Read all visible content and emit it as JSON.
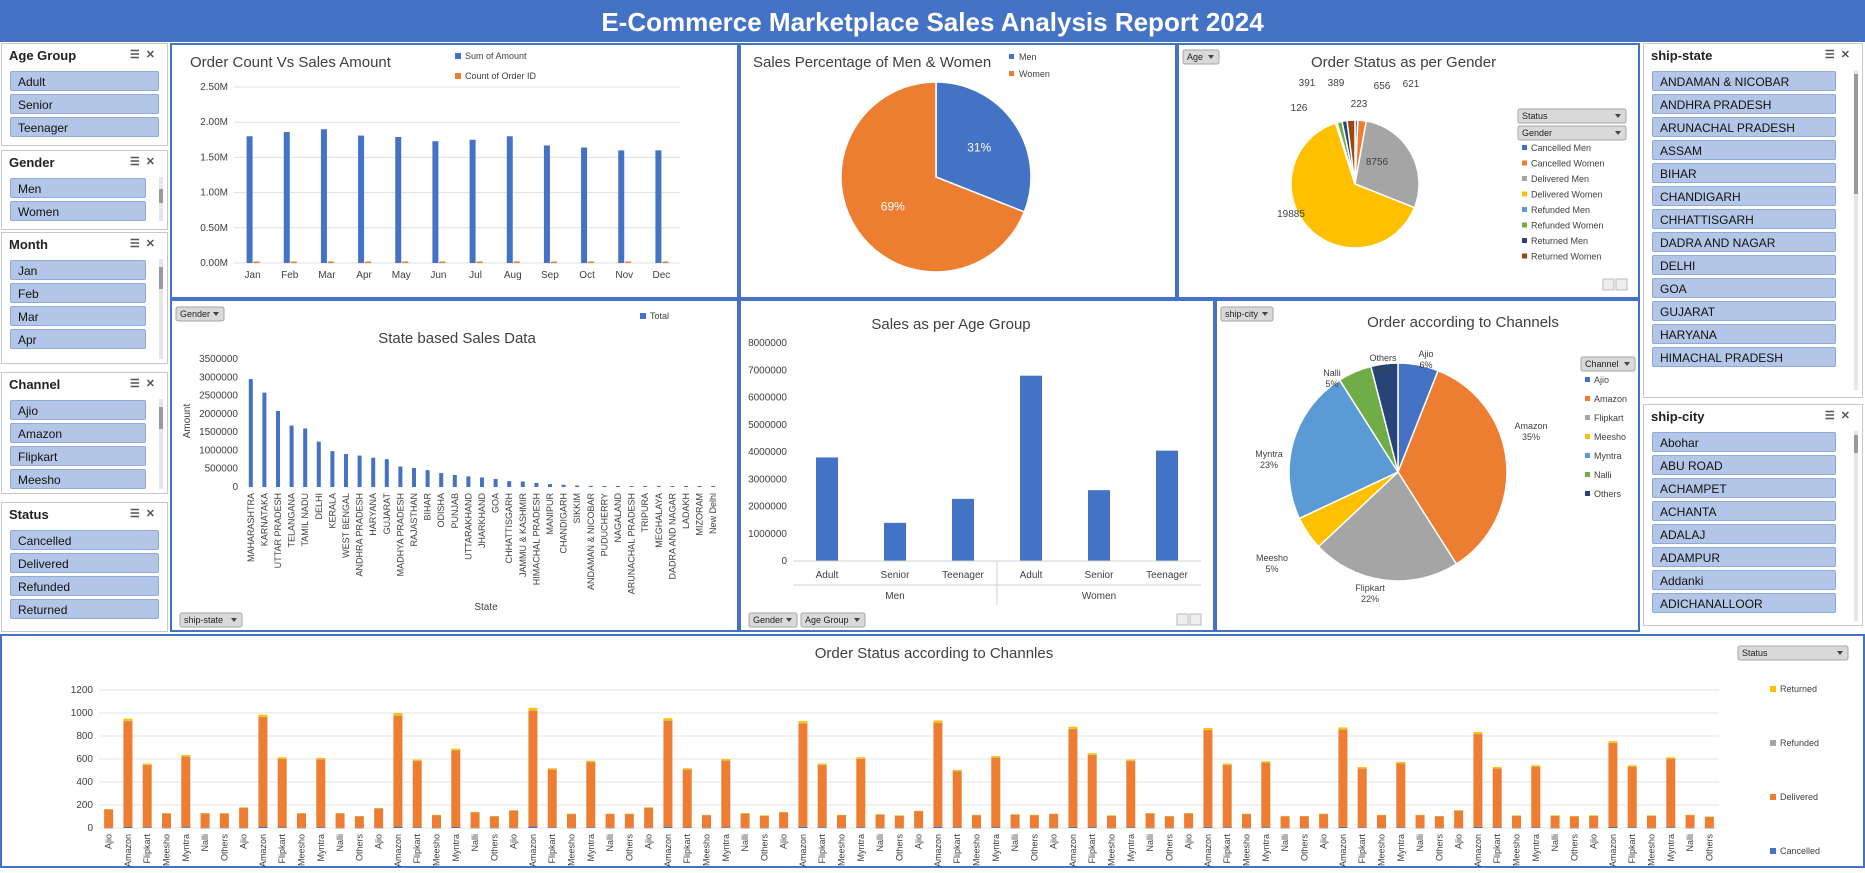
{
  "title": "E-Commerce Marketplace Sales Analysis Report 2024",
  "icons": {
    "multiselect": "multi-select-icon",
    "clear": "clear-filter-icon",
    "dropdown": "dropdown-arrow-icon"
  },
  "colors": {
    "blue": "#4472c4",
    "orange": "#ed7d31",
    "gray": "#a5a5a5",
    "yellow": "#ffc000",
    "lightblue": "#5b9bd5",
    "green": "#70ad47",
    "navy": "#264478",
    "darkred": "#9e480e"
  },
  "slicers": {
    "age_group": {
      "title": "Age Group",
      "items": [
        "Adult",
        "Senior",
        "Teenager"
      ]
    },
    "gender": {
      "title": "Gender",
      "items": [
        "Men",
        "Women"
      ]
    },
    "month": {
      "title": "Month",
      "items": [
        "Jan",
        "Feb",
        "Mar",
        "Apr"
      ]
    },
    "channel": {
      "title": "Channel",
      "items": [
        "Ajio",
        "Amazon",
        "Flipkart",
        "Meesho"
      ]
    },
    "status": {
      "title": "Status",
      "items": [
        "Cancelled",
        "Delivered",
        "Refunded",
        "Returned"
      ]
    },
    "ship_state": {
      "title": "ship-state",
      "items": [
        "ANDAMAN & NICOBAR",
        "ANDHRA PRADESH",
        "ARUNACHAL PRADESH",
        "ASSAM",
        "BIHAR",
        "CHANDIGARH",
        "CHHATTISGARH",
        "DADRA AND NAGAR",
        "DELHI",
        "GOA",
        "GUJARAT",
        "HARYANA",
        "HIMACHAL PRADESH"
      ]
    },
    "ship_city": {
      "title": "ship-city",
      "items": [
        "Abohar",
        "ABU ROAD",
        "ACHAMPET",
        "ACHANTA",
        "ADALAJ",
        "ADAMPUR",
        "Addanki",
        "ADICHANALLOOR"
      ]
    }
  },
  "filters": {
    "age": "Age",
    "gender": "Gender",
    "ship_state": "ship-state",
    "ship_city": "ship-city",
    "age_group": "Age Group",
    "status_pivot": "Status",
    "gender_pivot": "Gender",
    "channel_pivot": "Channel",
    "status_bottom": "Status"
  },
  "chart_data": [
    {
      "id": "order_vs_sales",
      "type": "bar",
      "title": "Order Count Vs Sales Amount",
      "categories": [
        "Jan",
        "Feb",
        "Mar",
        "Apr",
        "May",
        "Jun",
        "Jul",
        "Aug",
        "Sep",
        "Oct",
        "Nov",
        "Dec"
      ],
      "series": [
        {
          "name": "Sum of Amount",
          "values": [
            1800000,
            1860000,
            1900000,
            1810000,
            1790000,
            1730000,
            1750000,
            1800000,
            1670000,
            1640000,
            1600000,
            1600000
          ]
        },
        {
          "name": "Count of Order ID",
          "values": [
            2900,
            3000,
            3050,
            2950,
            2900,
            2800,
            2850,
            2900,
            2700,
            2650,
            2600,
            2600
          ]
        }
      ],
      "yticks": [
        "0.00M",
        "0.50M",
        "1.00M",
        "1.50M",
        "2.00M",
        "2.50M"
      ],
      "ylim": [
        0,
        2500000
      ]
    },
    {
      "id": "gender_pct",
      "type": "pie",
      "title": "Sales Percentage of Men & Women",
      "labels": [
        "Men",
        "Women"
      ],
      "values": [
        31,
        69
      ],
      "data_labels": [
        "31%",
        "69%"
      ]
    },
    {
      "id": "status_gender",
      "type": "pie",
      "title": "Order Status as per Gender",
      "labels": [
        "Cancelled Men",
        "Cancelled Women",
        "Delivered Men",
        "Delivered Women",
        "Refunded Men",
        "Refunded Women",
        "Returned Men",
        "Returned Women"
      ],
      "values": [
        223,
        656,
        8756,
        19885,
        126,
        391,
        389,
        621
      ],
      "data_labels": [
        "223",
        "656",
        "8756",
        "19885",
        "126",
        "391",
        "389",
        "621"
      ]
    },
    {
      "id": "state_sales",
      "type": "bar",
      "title": "State based Sales Data",
      "legend": "Total",
      "xlabel": "State",
      "ylabel": "Amount",
      "categories": [
        "MAHARASHTRA",
        "KARNATAKA",
        "UTTAR PRADESH",
        "TELANGANA",
        "TAMIL NADU",
        "DELHI",
        "KERALA",
        "WEST BENGAL",
        "ANDHRA PRADESH",
        "HARYANA",
        "GUJARAT",
        "MADHYA PRADESH",
        "RAJASTHAN",
        "BIHAR",
        "ODISHA",
        "PUNJAB",
        "UTTARAKHAND",
        "JHARKHAND",
        "GOA",
        "CHHATTISGARH",
        "JAMMU & KASHMIR",
        "HIMACHAL PRADESH",
        "MANIPUR",
        "CHANDIGARH",
        "SIKKIM",
        "ANDAMAN & NICOBAR",
        "PUDUCHERRY",
        "NAGALAND",
        "ARUNACHAL PRADESH",
        "TRIPURA",
        "MEGHALAYA",
        "DADRA AND NAGAR",
        "LADAKH",
        "MIZORAM",
        "New Delhi"
      ],
      "values": [
        2950000,
        2580000,
        2080000,
        1680000,
        1600000,
        1240000,
        980000,
        900000,
        860000,
        800000,
        760000,
        560000,
        520000,
        460000,
        380000,
        330000,
        290000,
        260000,
        220000,
        160000,
        150000,
        110000,
        80000,
        60000,
        40000,
        30000,
        25000,
        20000,
        15000,
        12000,
        10000,
        8000,
        6000,
        5000,
        4000
      ],
      "yticks": [
        "0",
        "500000",
        "1000000",
        "1500000",
        "2000000",
        "2500000",
        "3000000",
        "3500000"
      ],
      "ylim": [
        0,
        3500000
      ]
    },
    {
      "id": "age_group_sales",
      "type": "bar",
      "title": "Sales as per Age Group",
      "categories": [
        "Adult",
        "Senior",
        "Teenager",
        "Adult",
        "Senior",
        "Teenager"
      ],
      "groups": [
        "Men",
        "Women"
      ],
      "values": [
        3800000,
        1400000,
        2280000,
        6800000,
        2600000,
        4050000
      ],
      "yticks": [
        "0",
        "1000000",
        "2000000",
        "3000000",
        "4000000",
        "5000000",
        "6000000",
        "7000000",
        "8000000"
      ],
      "ylim": [
        0,
        8000000
      ]
    },
    {
      "id": "channel_orders",
      "type": "pie",
      "title": "Order according to Channels",
      "labels": [
        "Ajio",
        "Amazon",
        "Flipkart",
        "Meesho",
        "Myntra",
        "Nalli",
        "Others"
      ],
      "values": [
        6,
        35,
        22,
        5,
        23,
        5,
        4
      ],
      "data_labels": [
        "Ajio\n6%",
        "Amazon\n35%",
        "Flipkart\n22%",
        "Meesho\n5%",
        "Myntra\n23%",
        "Nalli\n5%",
        "Others\n4%"
      ]
    },
    {
      "id": "status_channels",
      "type": "bar",
      "title": "Order Status according to Channles",
      "legend": [
        "Returned",
        "Refunded",
        "Delivered",
        "Cancelled"
      ],
      "channels": [
        "Ajio",
        "Amazon",
        "Flipkart",
        "Meesho",
        "Myntra",
        "Nalli",
        "Others"
      ],
      "months": 12,
      "totals": [
        [
          165,
          950,
          560,
          130,
          635,
          130,
          130
        ],
        [
          180,
          985,
          615,
          130,
          610,
          130,
          105
        ],
        [
          175,
          1000,
          595,
          115,
          690,
          140,
          105
        ],
        [
          155,
          1045,
          520,
          125,
          585,
          125,
          125
        ],
        [
          180,
          955,
          520,
          115,
          600,
          130,
          110
        ],
        [
          140,
          930,
          560,
          115,
          615,
          120,
          110
        ],
        [
          150,
          935,
          505,
          115,
          625,
          120,
          115
        ],
        [
          125,
          880,
          650,
          110,
          595,
          130,
          105
        ],
        [
          130,
          870,
          560,
          125,
          580,
          105,
          105
        ],
        [
          125,
          875,
          530,
          115,
          575,
          115,
          105
        ],
        [
          155,
          835,
          530,
          110,
          545,
          110,
          105
        ],
        [
          110,
          755,
          545,
          110,
          615,
          115,
          100
        ]
      ],
      "yticks": [
        "0",
        "200",
        "400",
        "600",
        "800",
        "1000",
        "1200"
      ],
      "ylim": [
        0,
        1200
      ]
    }
  ]
}
